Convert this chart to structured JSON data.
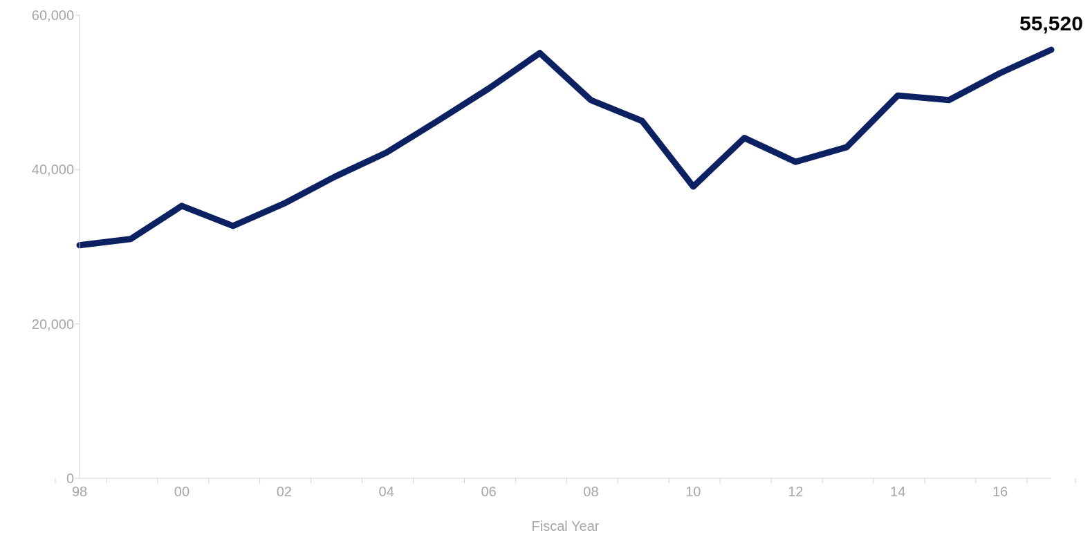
{
  "chart_data": {
    "type": "line",
    "xlabel": "Fiscal Year",
    "categories": [
      "98",
      null,
      "00",
      null,
      "02",
      null,
      "04",
      null,
      "06",
      null,
      "08",
      null,
      "10",
      null,
      "12",
      null,
      "14",
      null,
      "16",
      null
    ],
    "series": [
      {
        "color": "#0b2161",
        "values": [
          30200,
          31000,
          35300,
          32700,
          35600,
          39100,
          42200,
          46300,
          50500,
          55100,
          49000,
          46300,
          37800,
          44100,
          41000,
          42900,
          49600,
          49000,
          52500,
          55520
        ],
        "value_labels": [
          null,
          null,
          null,
          null,
          null,
          null,
          null,
          null,
          null,
          null,
          null,
          null,
          null,
          null,
          null,
          null,
          null,
          null,
          null,
          "55,520"
        ]
      }
    ],
    "ylim": [
      0,
      60000
    ],
    "yticks": [
      0,
      {
        "value": 20000,
        "label": "20,000"
      },
      {
        "value": 40000,
        "label": "40,000"
      },
      {
        "value": 60000,
        "label": "60,000"
      }
    ],
    "grid": false,
    "legend": false,
    "marker": "none",
    "line_style": "solid"
  }
}
